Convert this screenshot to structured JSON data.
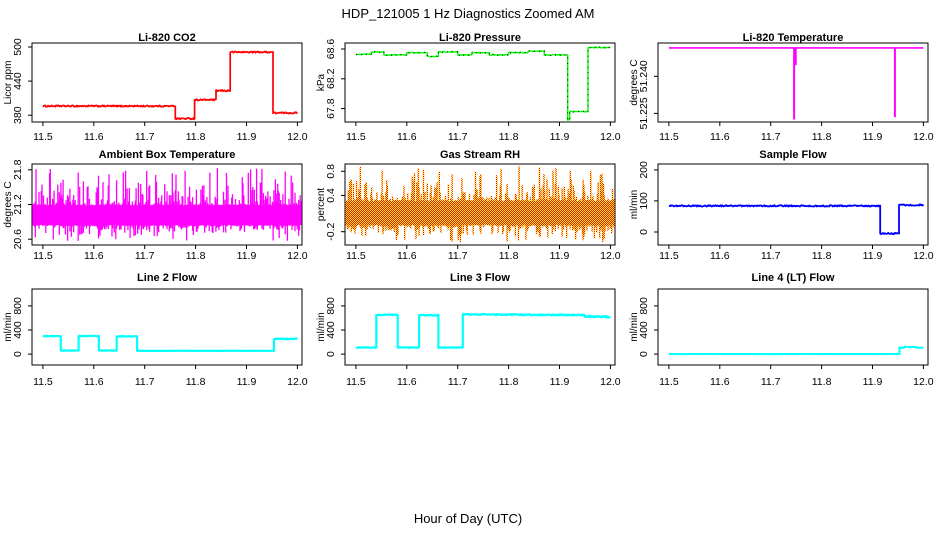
{
  "title": "HDP_121005  1 Hz Diagnostics Zoomed AM",
  "xlabel": "Hour of Day (UTC)",
  "chart_data": [
    {
      "type": "line",
      "slug": "li820-co2",
      "title": "Li-820 CO2",
      "ylabel": "Licor ppm",
      "color": "#FF0000",
      "linewidth": 1.7,
      "kind": "step",
      "jitter": 1.3,
      "xlim": [
        11.4785,
        12.009
      ],
      "ylim": [
        368,
        507
      ],
      "xticks": [
        11.5,
        11.6,
        11.7,
        11.8,
        11.9,
        12.0
      ],
      "xtick_labels": [
        "11.5",
        "11.6",
        "11.7",
        "11.8",
        "11.9",
        "12.0"
      ],
      "yticks": [
        380,
        440,
        500
      ],
      "ytick_labels": [
        "380",
        "440",
        "500"
      ],
      "segments": [
        [
          11.5,
          11.76,
          396
        ],
        [
          11.76,
          11.798,
          374
        ],
        [
          11.798,
          11.84,
          407
        ],
        [
          11.84,
          11.868,
          423
        ],
        [
          11.868,
          11.952,
          491
        ],
        [
          11.952,
          12.0,
          384
        ]
      ]
    },
    {
      "type": "line",
      "slug": "li820-pressure",
      "title": "Li-820 Pressure",
      "ylabel": "kPa",
      "color": "#00FF00",
      "linewidth": 1.4,
      "kind": "step",
      "jitter": 0.006,
      "overlay_dots": true,
      "xlim": [
        11.4785,
        12.009
      ],
      "ylim": [
        67.62,
        68.68
      ],
      "xticks": [
        11.5,
        11.6,
        11.7,
        11.8,
        11.9,
        12.0
      ],
      "xtick_labels": [
        "11.5",
        "11.6",
        "11.7",
        "11.8",
        "11.9",
        "12.0"
      ],
      "yticks": [
        67.8,
        68.2,
        68.6
      ],
      "ytick_labels": [
        "67.8",
        "68.2",
        "68.6"
      ],
      "segments": [
        [
          11.5,
          11.53,
          68.53
        ],
        [
          11.53,
          11.555,
          68.56
        ],
        [
          11.555,
          11.6,
          68.52
        ],
        [
          11.6,
          11.64,
          68.55
        ],
        [
          11.64,
          11.662,
          68.5
        ],
        [
          11.662,
          11.7,
          68.56
        ],
        [
          11.7,
          11.728,
          68.52
        ],
        [
          11.728,
          11.762,
          68.55
        ],
        [
          11.762,
          11.8,
          68.52
        ],
        [
          11.8,
          11.838,
          68.55
        ],
        [
          11.838,
          11.87,
          68.57
        ],
        [
          11.87,
          11.916,
          68.52
        ],
        [
          11.916,
          11.92,
          67.65
        ],
        [
          11.92,
          11.956,
          67.76
        ],
        [
          11.956,
          12.0,
          68.62
        ]
      ]
    },
    {
      "type": "line",
      "slug": "li820-temperature",
      "title": "Li-820 Temperature",
      "ylabel": "degrees C",
      "color": "#FF00FF",
      "linewidth": 1.6,
      "kind": "flat_spikes",
      "xlim": [
        11.4785,
        12.009
      ],
      "ylim": [
        51.2215,
        51.2535
      ],
      "xticks": [
        11.5,
        11.6,
        11.7,
        11.8,
        11.9,
        12.0
      ],
      "xtick_labels": [
        "11.5",
        "11.6",
        "11.7",
        "11.8",
        "11.9",
        "12.0"
      ],
      "yticks": [
        51.225,
        51.24
      ],
      "ytick_labels": [
        "51.225",
        "51.240"
      ],
      "flat": {
        "t0": 11.5,
        "t1": 12.0,
        "v": 51.2515
      },
      "spikes": [
        [
          11.746,
          51.2225
        ],
        [
          11.749,
          51.2445
        ],
        [
          11.944,
          51.2235
        ]
      ]
    },
    {
      "type": "line",
      "slug": "ambient-box-temperature",
      "title": "Ambient Box Temperature",
      "ylabel": "degrees C",
      "color": "#FF00FF",
      "kind": "band",
      "band_style": "solid",
      "xlim": [
        11.4785,
        12.009
      ],
      "ylim": [
        20.5,
        21.9
      ],
      "xticks": [
        11.5,
        11.6,
        11.7,
        11.8,
        11.9,
        12.0
      ],
      "xtick_labels": [
        "11.5",
        "11.6",
        "11.7",
        "11.8",
        "11.9",
        "12.0"
      ],
      "yticks": [
        20.6,
        21.2,
        21.8
      ],
      "ytick_labels": [
        "20.6",
        "21.2",
        "21.8"
      ],
      "band": {
        "lo": 20.85,
        "hi": 21.18,
        "dn": 20.58,
        "up": 21.82
      }
    },
    {
      "type": "scatter",
      "slug": "gas-stream-rh",
      "title": "Gas Stream RH",
      "ylabel": "percent",
      "color": "#FFA500",
      "dither_colors": [
        "#FF0000",
        "#FFFF00"
      ],
      "kind": "band",
      "band_style": "dither",
      "xlim": [
        11.4785,
        12.009
      ],
      "ylim": [
        -0.42,
        0.92
      ],
      "xticks": [
        11.5,
        11.6,
        11.7,
        11.8,
        11.9,
        12.0
      ],
      "xtick_labels": [
        "11.5",
        "11.6",
        "11.7",
        "11.8",
        "11.9",
        "12.0"
      ],
      "yticks": [
        -0.2,
        0.4,
        0.8
      ],
      "ytick_labels": [
        "-0.2",
        "0.4",
        "0.8"
      ],
      "band": {
        "lo": -0.08,
        "hi": 0.3,
        "dn": -0.36,
        "up": 0.87
      }
    },
    {
      "type": "line",
      "slug": "sample-flow",
      "title": "Sample Flow",
      "ylabel": "ml/min",
      "color": "#0000FF",
      "linewidth": 1.8,
      "kind": "step",
      "jitter": 2.2,
      "xlim": [
        11.4785,
        12.009
      ],
      "ylim": [
        -42,
        219
      ],
      "xticks": [
        11.5,
        11.6,
        11.7,
        11.8,
        11.9,
        12.0
      ],
      "xtick_labels": [
        "11.5",
        "11.6",
        "11.7",
        "11.8",
        "11.9",
        "12.0"
      ],
      "yticks": [
        0,
        100,
        200
      ],
      "ytick_labels": [
        "0",
        "100",
        "200"
      ],
      "segments": [
        [
          11.5,
          11.915,
          84
        ],
        [
          11.915,
          11.952,
          -5
        ],
        [
          11.952,
          12.0,
          87
        ]
      ]
    },
    {
      "type": "line",
      "slug": "line2-flow",
      "title": "Line 2 Flow",
      "ylabel": "ml/min",
      "color": "#00FFFF",
      "linewidth": 2.2,
      "kind": "step",
      "jitter": 2,
      "xlim": [
        11.4785,
        12.009
      ],
      "ylim": [
        -180,
        1080
      ],
      "xticks": [
        11.5,
        11.6,
        11.7,
        11.8,
        11.9,
        12.0
      ],
      "xtick_labels": [
        "11.5",
        "11.6",
        "11.7",
        "11.8",
        "11.9",
        "12.0"
      ],
      "yticks": [
        0,
        400,
        800
      ],
      "ytick_labels": [
        "0",
        "400",
        "800"
      ],
      "segments": [
        [
          11.5,
          11.535,
          300,
          300,
          5
        ],
        [
          11.535,
          11.57,
          60,
          60,
          2
        ],
        [
          11.57,
          11.61,
          300,
          300,
          5
        ],
        [
          11.61,
          11.645,
          60,
          60,
          2
        ],
        [
          11.645,
          11.685,
          295,
          295,
          5
        ],
        [
          11.685,
          11.954,
          55,
          55,
          1.5
        ],
        [
          11.954,
          12.0,
          253,
          253,
          7
        ]
      ]
    },
    {
      "type": "line",
      "slug": "line3-flow",
      "title": "Line 3 Flow",
      "ylabel": "ml/min",
      "color": "#00FFFF",
      "linewidth": 2.2,
      "kind": "step",
      "jitter": 2,
      "xlim": [
        11.4785,
        12.009
      ],
      "ylim": [
        -180,
        1080
      ],
      "xticks": [
        11.5,
        11.6,
        11.7,
        11.8,
        11.9,
        12.0
      ],
      "xtick_labels": [
        "11.5",
        "11.6",
        "11.7",
        "11.8",
        "11.9",
        "12.0"
      ],
      "yticks": [
        0,
        400,
        800
      ],
      "ytick_labels": [
        "0",
        "400",
        "800"
      ],
      "segments": [
        [
          11.5,
          11.54,
          110,
          110,
          5
        ],
        [
          11.54,
          11.582,
          650,
          650,
          7
        ],
        [
          11.582,
          11.624,
          110,
          110,
          5
        ],
        [
          11.624,
          11.662,
          645,
          645,
          7
        ],
        [
          11.662,
          11.71,
          110,
          110,
          5
        ],
        [
          11.71,
          11.95,
          660,
          648,
          9
        ],
        [
          11.95,
          12.0,
          628,
          618,
          12
        ]
      ]
    },
    {
      "type": "line",
      "slug": "line4-lt-flow",
      "title": "Line 4 (LT) Flow",
      "ylabel": "ml/min",
      "color": "#00FFFF",
      "linewidth": 2.0,
      "kind": "step",
      "jitter": 1,
      "xlim": [
        11.4785,
        12.009
      ],
      "ylim": [
        -180,
        1080
      ],
      "xticks": [
        11.5,
        11.6,
        11.7,
        11.8,
        11.9,
        12.0
      ],
      "xtick_labels": [
        "11.5",
        "11.6",
        "11.7",
        "11.8",
        "11.9",
        "12.0"
      ],
      "yticks": [
        0,
        400,
        800
      ],
      "ytick_labels": [
        "0",
        "400",
        "800"
      ],
      "segments": [
        [
          11.5,
          11.953,
          2,
          2,
          1
        ],
        [
          11.953,
          11.962,
          108,
          108,
          4
        ],
        [
          11.962,
          11.985,
          120,
          118,
          4
        ],
        [
          11.985,
          12.0,
          108,
          106,
          4
        ]
      ]
    }
  ]
}
